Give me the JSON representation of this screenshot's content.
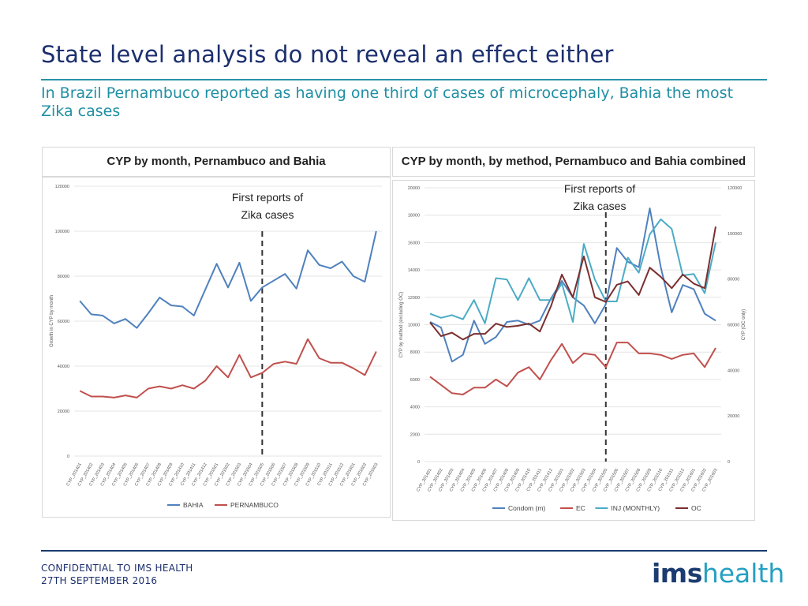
{
  "slide": {
    "title": "State level analysis do not reveal an effect either",
    "subtitle": "In Brazil Pernambuco reported as having one third of cases of microcephaly, Bahia the most Zika cases",
    "footer_confidential": "CONFIDENTIAL TO IMS HEALTH",
    "footer_date": "27TH SEPTEMBER 2016",
    "logo_ims": "ims",
    "logo_health": "health"
  },
  "colors": {
    "title": "#1c2f6e",
    "accent": "#2a93a8",
    "bahia": "#4f81bd",
    "pernambuco": "#c0504d",
    "condom": "#4f81bd",
    "ec": "#c0504d",
    "inj": "#4bacc6",
    "oc": "#7b2f2f"
  },
  "chart_data": [
    {
      "type": "line",
      "title": "CYP by month, Pernambuco and Bahia",
      "ylabel": "Growth in CYP by month",
      "ylim": [
        0,
        120000
      ],
      "yticks": [
        "0",
        "20000",
        "40000",
        "60000",
        "80000",
        "100000",
        "120000"
      ],
      "annotation": {
        "lines": [
          "First reports of",
          "Zika cases"
        ],
        "at_category": "CYP_201505"
      },
      "categories": [
        "CYP_201401",
        "CYP_201402",
        "CYP_201403",
        "CYP_201404",
        "CYP_201405",
        "CYP_201406",
        "CYP_201407",
        "CYP_201408",
        "CYP_201409",
        "CYP_201410",
        "CYP_201411",
        "CYP_201412",
        "CYP_201501",
        "CYP_201502",
        "CYP_201503",
        "CYP_201504",
        "CYP_201505",
        "CYP_201506",
        "CYP_201507",
        "CYP_201508",
        "CYP_201509",
        "CYP_201510",
        "CYP_201511",
        "CYP_201512",
        "CYP_201601",
        "CYP_201602",
        "CYP_201603"
      ],
      "series": [
        {
          "name": "BAHIA",
          "color": "#4f81bd",
          "values": [
            69000,
            63000,
            62500,
            59000,
            61000,
            57000,
            63500,
            70500,
            67000,
            66500,
            62500,
            74000,
            85500,
            75000,
            86000,
            69000,
            75000,
            78000,
            81000,
            74500,
            91500,
            85000,
            83500,
            86500,
            80000,
            77500,
            100000
          ]
        },
        {
          "name": "PERNAMBUCO",
          "color": "#c0504d",
          "values": [
            29000,
            26500,
            26500,
            26000,
            27000,
            26000,
            30000,
            31000,
            30000,
            31500,
            30000,
            33500,
            40000,
            35000,
            45000,
            35000,
            37000,
            41000,
            42000,
            41000,
            52000,
            43500,
            41500,
            41500,
            39000,
            36000,
            46500
          ]
        }
      ]
    },
    {
      "type": "line",
      "title": "CYP by month, by method, Pernambuco and Bahia combined",
      "ylabel": "CYP by method (excluding OC)",
      "ylabel_right": "CYP (OC only)",
      "ylim": [
        0,
        20000
      ],
      "ylim_right": [
        0,
        120000
      ],
      "yticks": [
        "0",
        "2000",
        "4000",
        "6000",
        "8000",
        "10000",
        "12000",
        "14000",
        "16000",
        "18000",
        "20000"
      ],
      "yticks_right": [
        "0",
        "20000",
        "40000",
        "60000",
        "80000",
        "100000",
        "120000"
      ],
      "annotation": {
        "lines": [
          "First reports of",
          "Zika cases"
        ],
        "at_category": "CYP_201505"
      },
      "categories": [
        "CYP_201401",
        "CYP_201402",
        "CYP_201403",
        "CYP_201404",
        "CYP_201405",
        "CYP_201406",
        "CYP_201407",
        "CYP_201408",
        "CYP_201409",
        "CYP_201410",
        "CYP_201411",
        "CYP_201412",
        "CYP_201501",
        "CYP_201502",
        "CYP_201503",
        "CYP_201504",
        "CYP_201505",
        "CYP_201506",
        "CYP_201507",
        "CYP_201508",
        "CYP_201509",
        "CYP_201510",
        "CYP_201511",
        "CYP_201512",
        "CYP_201601",
        "CYP_201602",
        "CYP_201603"
      ],
      "series": [
        {
          "name": "Condom (m)",
          "color": "#4f81bd",
          "axis": "left",
          "values": [
            10200,
            9800,
            7300,
            7800,
            10300,
            8600,
            9100,
            10200,
            10300,
            10000,
            10300,
            11900,
            13200,
            12000,
            11400,
            10100,
            11500,
            15600,
            14600,
            14200,
            18500,
            14200,
            10900,
            12900,
            12600,
            10800,
            10300
          ]
        },
        {
          "name": "EC",
          "color": "#c0504d",
          "axis": "left",
          "values": [
            6200,
            5600,
            5000,
            4900,
            5400,
            5400,
            6000,
            5500,
            6500,
            6900,
            6000,
            7400,
            8600,
            7200,
            7900,
            7800,
            6900,
            8700,
            8700,
            7900,
            7900,
            7800,
            7500,
            7800,
            7900,
            6900,
            8300
          ]
        },
        {
          "name": "INJ (MONTHLY)",
          "color": "#4bacc6",
          "axis": "left",
          "values": [
            10800,
            10500,
            10700,
            10400,
            11800,
            10100,
            13400,
            13300,
            11800,
            13400,
            11800,
            11800,
            13000,
            10200,
            15900,
            13300,
            11700,
            11700,
            14900,
            13800,
            16600,
            17700,
            17000,
            13600,
            13700,
            12300,
            16000
          ]
        },
        {
          "name": "OC",
          "color": "#7b2f2f",
          "axis": "right",
          "values": [
            61000,
            55000,
            56500,
            53500,
            56000,
            56000,
            60500,
            59000,
            59500,
            60500,
            57000,
            68000,
            82000,
            72000,
            90000,
            72000,
            70000,
            77500,
            79000,
            73000,
            85000,
            81000,
            76000,
            82000,
            78000,
            76000,
            103000
          ]
        }
      ]
    }
  ]
}
